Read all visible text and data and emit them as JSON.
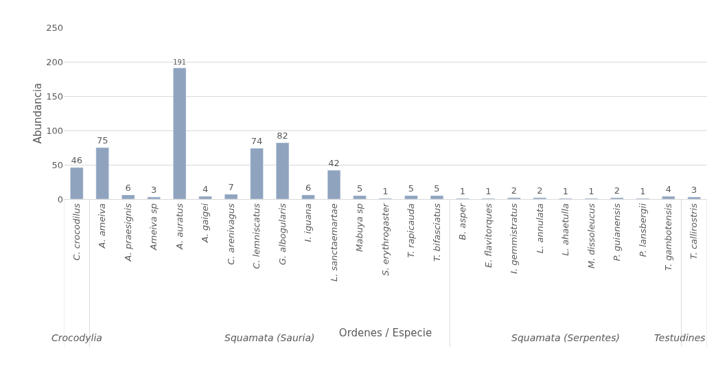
{
  "chart_data": {
    "type": "bar",
    "categories": [
      "C. crocodilus",
      "A. ameiva",
      "A. praesignis",
      "Ameiva sp",
      "A. auratus",
      "A. gaigei",
      "C. arenivagus",
      "C. lemniscatus",
      "G. albogularis",
      "I. iguana",
      "L. sanctaemartae",
      "Mabuya sp",
      "S. erythrogaster",
      "T. rapicauda",
      "T. bifasciatus",
      "B. asper",
      "E. flavitorques",
      "I. gemmistratus",
      "L. annulata",
      "L. ahaetulla",
      "M. dissoleucus",
      "P. guianensis",
      "P. lansbergii",
      "T. gambotensis",
      "T. callirostris"
    ],
    "values": [
      46,
      75,
      6,
      3,
      191,
      4,
      7,
      74,
      82,
      6,
      42,
      5,
      1,
      5,
      5,
      1,
      1,
      2,
      2,
      1,
      1,
      2,
      1,
      4,
      3
    ],
    "color": "#8fa3bf",
    "xlabel": "Ordenes / Especie",
    "ylabel": "Abundancia",
    "ylim": [
      0,
      250
    ],
    "yticks": [
      0,
      50,
      100,
      150,
      200,
      250
    ],
    "grid": "y",
    "data_labels": true,
    "annotations": [
      "Crocodylia",
      "Squamata (Sauria)",
      "Squamata (Serpentes)",
      "Testudines"
    ]
  }
}
